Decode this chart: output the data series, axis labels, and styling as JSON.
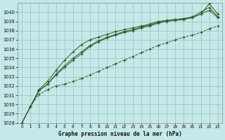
{
  "title": "Graphe pression niveau de la mer (hPa)",
  "bg_color": "#c5e8e8",
  "grid_color": "#9bbfbf",
  "line_color": "#2d5a27",
  "xlim_min": -0.5,
  "xlim_max": 23.5,
  "ylim_min": 1028,
  "ylim_max": 1041,
  "yticks": [
    1028,
    1029,
    1030,
    1031,
    1032,
    1033,
    1034,
    1035,
    1036,
    1037,
    1038,
    1039,
    1040
  ],
  "xtick_labels": [
    "0",
    "1",
    "2",
    "3",
    "4",
    "5",
    "6",
    "7",
    "8",
    "9",
    "10",
    "11",
    "12",
    "13",
    "14",
    "15",
    "16",
    "17",
    "18",
    "19",
    "20",
    "21",
    "22",
    "23"
  ],
  "series": [
    [
      1028.0,
      1029.8,
      1031.1,
      1031.6,
      1032.0,
      1032.2,
      1032.5,
      1032.8,
      1033.2,
      1033.6,
      1034.0,
      1034.4,
      1034.8,
      1035.2,
      1035.6,
      1036.0,
      1036.4,
      1036.7,
      1037.0,
      1037.3,
      1037.5,
      1037.8,
      1038.2,
      1038.5
    ],
    [
      1028.0,
      1029.8,
      1031.5,
      1032.2,
      1033.2,
      1034.0,
      1034.8,
      1035.5,
      1036.3,
      1036.8,
      1037.2,
      1037.5,
      1037.8,
      1038.0,
      1038.3,
      1038.5,
      1038.8,
      1039.0,
      1039.1,
      1039.2,
      1039.4,
      1039.8,
      1040.2,
      1039.4
    ],
    [
      1028.0,
      1029.8,
      1031.5,
      1032.2,
      1033.3,
      1034.2,
      1035.0,
      1035.7,
      1036.4,
      1036.9,
      1037.3,
      1037.6,
      1037.9,
      1038.1,
      1038.4,
      1038.6,
      1038.9,
      1039.1,
      1039.2,
      1039.3,
      1039.5,
      1040.0,
      1040.5,
      1039.5
    ],
    [
      1028.0,
      1029.8,
      1031.6,
      1032.5,
      1033.7,
      1034.8,
      1035.7,
      1036.5,
      1037.0,
      1037.3,
      1037.6,
      1037.9,
      1038.1,
      1038.3,
      1038.5,
      1038.7,
      1039.0,
      1039.1,
      1039.2,
      1039.3,
      1039.4,
      1039.8,
      1040.9,
      1039.8
    ]
  ]
}
